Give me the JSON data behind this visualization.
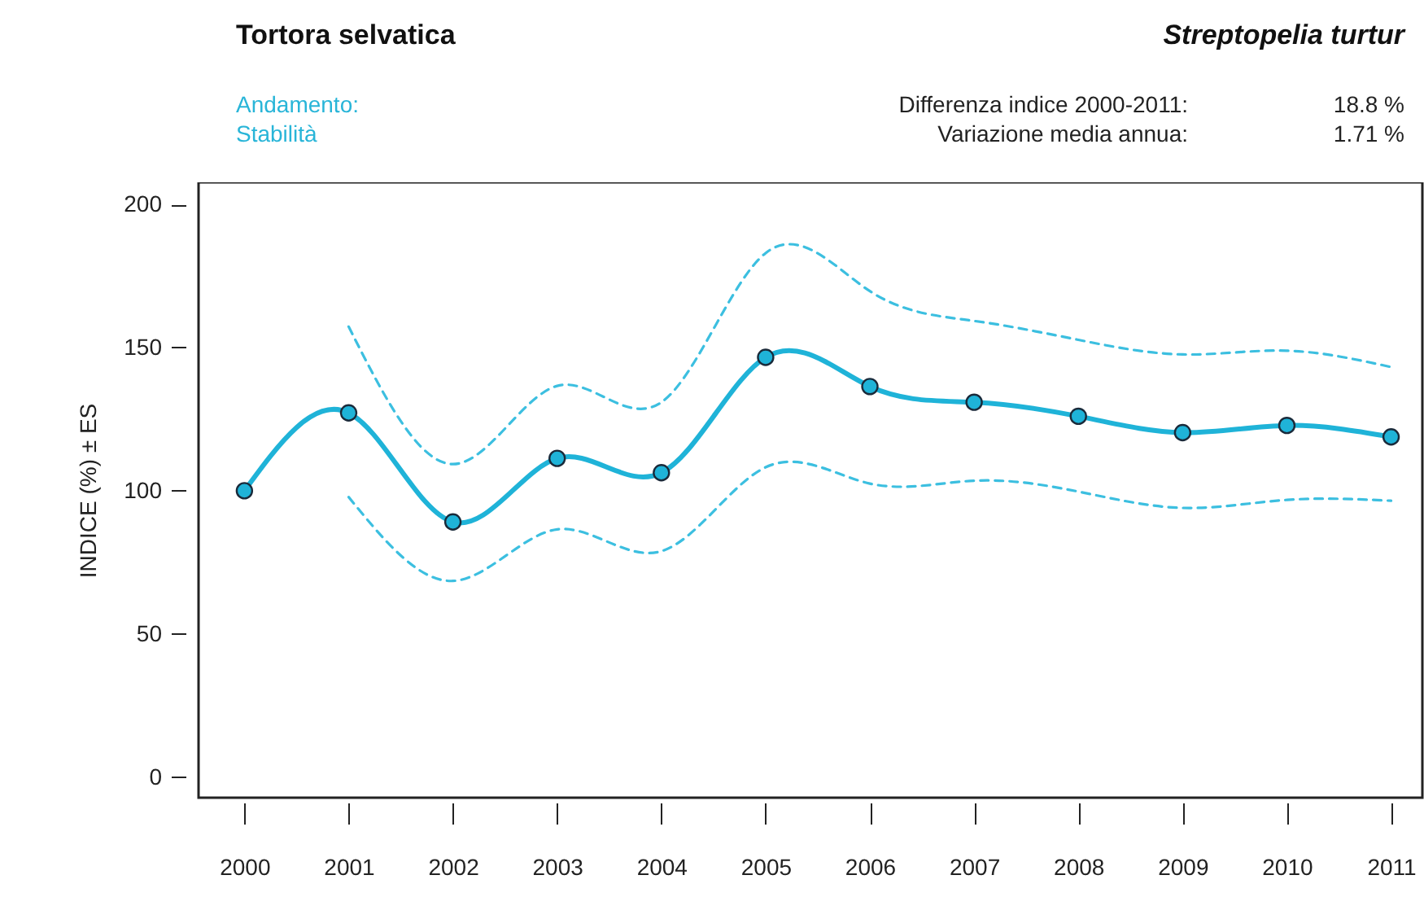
{
  "chart_data": {
    "type": "line",
    "title": "Tortora selvatica",
    "ylabel": "INDICE (%) ± ES",
    "annotations": [
      "Streptopelia turtur",
      "Andamento:",
      "Stabilità",
      "Differenza indice 2000-2011:",
      "18.8 %",
      "Variazione media annua:",
      "1.71 %"
    ],
    "x": [
      2000,
      2001,
      2002,
      2003,
      2004,
      2005,
      2006,
      2007,
      2008,
      2009,
      2010,
      2011
    ],
    "series": [
      {
        "color": "#1fb3d8",
        "marker": "circle",
        "line_style": "solid",
        "values": [
          100,
          127.2,
          89.1,
          111.3,
          106.3,
          146.6,
          136.4,
          130.9,
          126.0,
          120.3,
          122.8,
          118.8
        ]
      },
      {
        "color": "#3cbfe0",
        "marker": "none",
        "line_style": "dashed",
        "values": [
          null,
          157.3,
          109.3,
          136.6,
          130.9,
          183,
          169.7,
          159.3,
          152.7,
          147.6,
          148.9,
          143.2
        ]
      },
      {
        "color": "#3cbfe0",
        "marker": "none",
        "line_style": "dashed",
        "values": [
          null,
          97.8,
          68.5,
          86.5,
          78.9,
          108.2,
          102.5,
          103.5,
          99.7,
          94.0,
          96.8,
          96.5
        ]
      }
    ],
    "xlim": [
      1999.56,
      2011.3
    ],
    "xticks": [
      2000,
      2001,
      2002,
      2003,
      2004,
      2005,
      2006,
      2007,
      2008,
      2009,
      2010,
      2011
    ],
    "ylim": [
      -7.2,
      207.7
    ],
    "yticks": [
      0,
      50,
      100,
      150,
      200
    ],
    "grid": false
  }
}
